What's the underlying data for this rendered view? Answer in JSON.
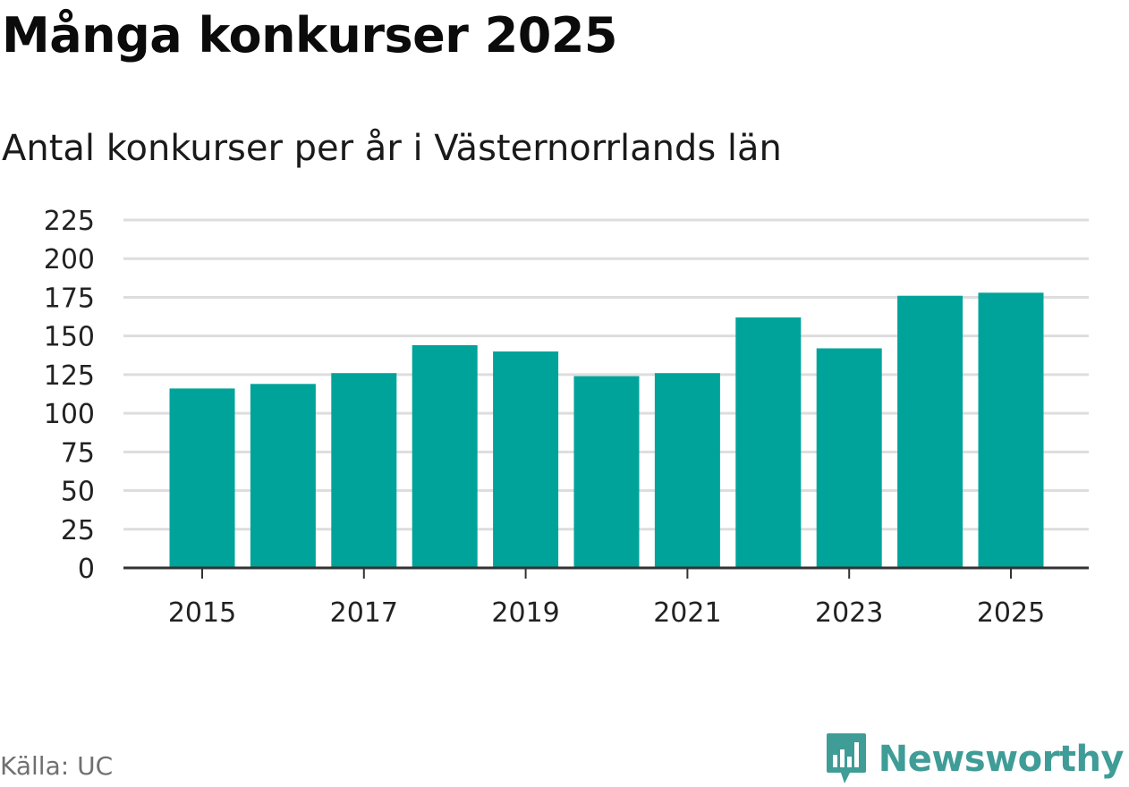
{
  "header": {
    "title": "Många konkurser 2025",
    "subtitle": "Antal konkurser per år i Västernorrlands län"
  },
  "footer": {
    "source": "Källa: UC",
    "brand": "Newsworthy"
  },
  "colors": {
    "bar": "#00a39a",
    "grid": "#dddddd",
    "axis": "#333333",
    "brand": "#3f9c96"
  },
  "chart_data": {
    "type": "bar",
    "title": "Många konkurser 2025",
    "subtitle": "Antal konkurser per år i Västernorrlands län",
    "xlabel": "",
    "ylabel": "",
    "categories": [
      "2015",
      "2016",
      "2017",
      "2018",
      "2019",
      "2020",
      "2021",
      "2022",
      "2023",
      "2024",
      "2025"
    ],
    "values": [
      116,
      119,
      126,
      144,
      140,
      124,
      126,
      162,
      142,
      176,
      178
    ],
    "x_tick_labels": [
      "2015",
      "2017",
      "2019",
      "2021",
      "2023",
      "2025"
    ],
    "y_ticks": [
      0,
      25,
      50,
      75,
      100,
      125,
      150,
      175,
      200,
      225
    ],
    "ylim": [
      0,
      225
    ],
    "grid": true,
    "legend": "none"
  }
}
